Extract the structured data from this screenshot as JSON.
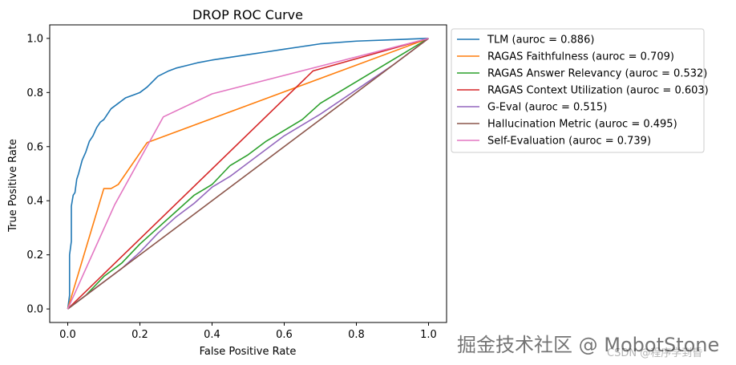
{
  "chart_data": {
    "type": "line",
    "title": "DROP ROC Curve",
    "xlabel": "False Positive Rate",
    "ylabel": "True Positive Rate",
    "xlim": [
      -0.05,
      1.05
    ],
    "ylim": [
      -0.05,
      1.05
    ],
    "xticks": [
      "0.0",
      "0.2",
      "0.4",
      "0.6",
      "0.8",
      "1.0"
    ],
    "yticks": [
      "0.0",
      "0.2",
      "0.4",
      "0.6",
      "0.8",
      "1.0"
    ],
    "legend_position": "outside-right",
    "series": [
      {
        "name": "TLM (auroc = 0.886)",
        "color": "#1f77b4",
        "x": [
          0,
          0.005,
          0.005,
          0.01,
          0.01,
          0.015,
          0.02,
          0.025,
          0.03,
          0.04,
          0.05,
          0.06,
          0.07,
          0.08,
          0.09,
          0.1,
          0.11,
          0.12,
          0.14,
          0.16,
          0.18,
          0.2,
          0.22,
          0.25,
          0.28,
          0.3,
          0.33,
          0.36,
          0.4,
          0.45,
          0.5,
          0.55,
          0.6,
          0.65,
          0.7,
          0.8,
          0.9,
          1.0
        ],
        "y": [
          0,
          0.05,
          0.2,
          0.25,
          0.38,
          0.42,
          0.43,
          0.48,
          0.5,
          0.55,
          0.58,
          0.62,
          0.64,
          0.67,
          0.69,
          0.7,
          0.72,
          0.74,
          0.76,
          0.78,
          0.79,
          0.8,
          0.82,
          0.86,
          0.88,
          0.89,
          0.9,
          0.91,
          0.92,
          0.93,
          0.94,
          0.95,
          0.96,
          0.97,
          0.98,
          0.99,
          0.995,
          1.0
        ]
      },
      {
        "name": "RAGAS Faithfulness (auroc = 0.709)",
        "color": "#ff7f0e",
        "x": [
          0,
          0.1,
          0.12,
          0.14,
          0.22,
          1.0
        ],
        "y": [
          0,
          0.445,
          0.445,
          0.46,
          0.615,
          1.0
        ]
      },
      {
        "name": "RAGAS Answer Relevancy (auroc = 0.532)",
        "color": "#2ca02c",
        "x": [
          0,
          0.05,
          0.1,
          0.15,
          0.2,
          0.25,
          0.3,
          0.35,
          0.4,
          0.45,
          0.5,
          0.55,
          0.6,
          0.65,
          0.7,
          0.8,
          0.9,
          1.0
        ],
        "y": [
          0,
          0.05,
          0.12,
          0.17,
          0.24,
          0.3,
          0.36,
          0.42,
          0.46,
          0.53,
          0.57,
          0.62,
          0.66,
          0.7,
          0.76,
          0.84,
          0.92,
          1.0
        ]
      },
      {
        "name": "RAGAS Context Utilization (auroc = 0.603)",
        "color": "#d62728",
        "x": [
          0,
          0.68,
          1.0
        ],
        "y": [
          0,
          0.88,
          1.0
        ]
      },
      {
        "name": "G-Eval (auroc = 0.515)",
        "color": "#9467bd",
        "x": [
          0,
          0.05,
          0.1,
          0.15,
          0.2,
          0.25,
          0.3,
          0.35,
          0.4,
          0.45,
          0.5,
          0.55,
          0.6,
          0.65,
          0.7,
          0.8,
          0.9,
          1.0
        ],
        "y": [
          0,
          0.05,
          0.1,
          0.15,
          0.21,
          0.28,
          0.34,
          0.39,
          0.45,
          0.49,
          0.54,
          0.59,
          0.64,
          0.68,
          0.72,
          0.81,
          0.9,
          1.0
        ]
      },
      {
        "name": "Hallucination Metric (auroc = 0.495)",
        "color": "#8c564b",
        "x": [
          0,
          1.0
        ],
        "y": [
          0,
          1.0
        ]
      },
      {
        "name": "Self-Evaluation (auroc = 0.739)",
        "color": "#e377c2",
        "x": [
          0,
          0.13,
          0.265,
          0.4,
          1.0
        ],
        "y": [
          0,
          0.385,
          0.71,
          0.795,
          1.0
        ]
      }
    ]
  },
  "watermark": {
    "main": "掘金技术社区 @ MobotStone",
    "sub": "CSDN @程序学到昏"
  }
}
